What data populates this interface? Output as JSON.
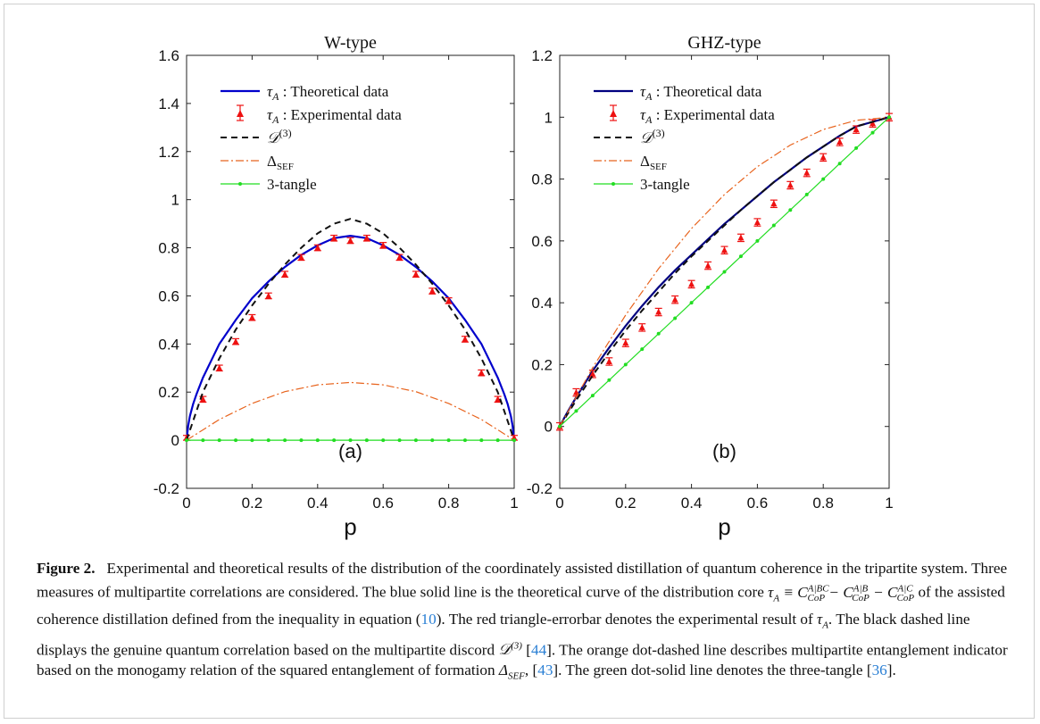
{
  "chart_data": [
    {
      "type": "line",
      "title": "W-type",
      "xlabel": "p",
      "ylabel": "",
      "xlim": [
        0,
        1
      ],
      "ylim": [
        -0.2,
        1.6
      ],
      "xticks": [
        "0",
        "0.2",
        "0.4",
        "0.6",
        "0.8",
        "1"
      ],
      "yticks": [
        "-0.2",
        "0",
        "0.2",
        "0.4",
        "0.6",
        "0.8",
        "1",
        "1.2",
        "1.4",
        "1.6"
      ],
      "panel_label": "(a)",
      "legend_position": "upper-left",
      "legend": [
        "τA : Theoretical data",
        "τA : Experimental data",
        "D(3)",
        "ΔSEF",
        "3-tangle"
      ],
      "series": [
        {
          "name": "τA : Theoretical data",
          "style": "solid",
          "color": "#0000cc",
          "x": [
            0,
            0.005,
            0.01,
            0.02,
            0.03,
            0.05,
            0.075,
            0.1,
            0.15,
            0.2,
            0.25,
            0.3,
            0.35,
            0.4,
            0.45,
            0.5,
            0.55,
            0.6,
            0.65,
            0.7,
            0.75,
            0.8,
            0.85,
            0.9,
            0.925,
            0.95,
            0.97,
            0.98,
            0.99,
            0.995,
            1
          ],
          "y": [
            0,
            0.06,
            0.1,
            0.15,
            0.19,
            0.26,
            0.33,
            0.4,
            0.5,
            0.59,
            0.66,
            0.72,
            0.77,
            0.81,
            0.84,
            0.85,
            0.84,
            0.81,
            0.77,
            0.72,
            0.66,
            0.59,
            0.5,
            0.4,
            0.33,
            0.26,
            0.19,
            0.15,
            0.1,
            0.06,
            0
          ]
        },
        {
          "name": "τA : Experimental data",
          "style": "errorbar",
          "color": "#ee1111",
          "x": [
            0,
            0.05,
            0.1,
            0.15,
            0.2,
            0.25,
            0.3,
            0.35,
            0.4,
            0.45,
            0.5,
            0.55,
            0.6,
            0.65,
            0.7,
            0.75,
            0.8,
            0.85,
            0.9,
            0.95,
            1
          ],
          "y": [
            0.01,
            0.17,
            0.3,
            0.41,
            0.51,
            0.6,
            0.69,
            0.76,
            0.8,
            0.84,
            0.83,
            0.84,
            0.81,
            0.76,
            0.69,
            0.62,
            0.58,
            0.42,
            0.28,
            0.17,
            0.01
          ],
          "err": [
            0.01,
            0.012,
            0.012,
            0.012,
            0.012,
            0.012,
            0.012,
            0.012,
            0.012,
            0.012,
            0.012,
            0.012,
            0.012,
            0.012,
            0.012,
            0.012,
            0.012,
            0.012,
            0.012,
            0.012,
            0.01
          ]
        },
        {
          "name": "D(3)",
          "style": "dashed",
          "color": "#111111",
          "x": [
            0,
            0.05,
            0.1,
            0.15,
            0.2,
            0.25,
            0.3,
            0.35,
            0.4,
            0.45,
            0.5,
            0.55,
            0.6,
            0.65,
            0.7,
            0.75,
            0.8,
            0.85,
            0.9,
            0.95,
            1
          ],
          "y": [
            0,
            0.2,
            0.34,
            0.46,
            0.56,
            0.65,
            0.73,
            0.8,
            0.86,
            0.9,
            0.92,
            0.9,
            0.86,
            0.8,
            0.73,
            0.65,
            0.56,
            0.46,
            0.34,
            0.2,
            0
          ]
        },
        {
          "name": "ΔSEF",
          "style": "dashdot",
          "color": "#e8641e",
          "x": [
            0,
            0.1,
            0.2,
            0.3,
            0.4,
            0.5,
            0.6,
            0.7,
            0.8,
            0.9,
            1
          ],
          "y": [
            0,
            0.086,
            0.153,
            0.202,
            0.23,
            0.24,
            0.23,
            0.202,
            0.153,
            0.086,
            0
          ]
        },
        {
          "name": "3-tangle",
          "style": "dot-solid",
          "color": "#22dd22",
          "x": [
            0,
            0.05,
            0.1,
            0.15,
            0.2,
            0.25,
            0.3,
            0.35,
            0.4,
            0.45,
            0.5,
            0.55,
            0.6,
            0.65,
            0.7,
            0.75,
            0.8,
            0.85,
            0.9,
            0.95,
            1
          ],
          "y": [
            0,
            0,
            0,
            0,
            0,
            0,
            0,
            0,
            0,
            0,
            0,
            0,
            0,
            0,
            0,
            0,
            0,
            0,
            0,
            0,
            0
          ]
        }
      ]
    },
    {
      "type": "line",
      "title": "GHZ-type",
      "xlabel": "p",
      "ylabel": "",
      "xlim": [
        0,
        1
      ],
      "ylim": [
        -0.2,
        1.2
      ],
      "xticks": [
        "0",
        "0.2",
        "0.4",
        "0.6",
        "0.8",
        "1"
      ],
      "yticks": [
        "-0.2",
        "0",
        "0.2",
        "0.4",
        "0.6",
        "0.8",
        "1",
        "1.2"
      ],
      "panel_label": "(b)",
      "legend_position": "upper-left",
      "legend": [
        "τA : Theoretical data",
        "τA : Experimental data",
        "D(3)",
        "ΔSEF",
        "3-tangle"
      ],
      "series": [
        {
          "name": "τA : Theoretical data",
          "style": "solid",
          "color": "#000080",
          "x": [
            0,
            0.02,
            0.05,
            0.1,
            0.15,
            0.2,
            0.25,
            0.3,
            0.35,
            0.4,
            0.45,
            0.5,
            0.55,
            0.6,
            0.65,
            0.7,
            0.75,
            0.8,
            0.85,
            0.9,
            0.95,
            1
          ],
          "y": [
            0,
            0.04,
            0.095,
            0.18,
            0.255,
            0.325,
            0.39,
            0.45,
            0.505,
            0.555,
            0.605,
            0.655,
            0.7,
            0.745,
            0.79,
            0.83,
            0.87,
            0.905,
            0.94,
            0.97,
            0.985,
            1
          ]
        },
        {
          "name": "τA : Experimental data",
          "style": "errorbar",
          "color": "#ee1111",
          "x": [
            0,
            0.05,
            0.1,
            0.15,
            0.2,
            0.25,
            0.3,
            0.35,
            0.4,
            0.45,
            0.5,
            0.55,
            0.6,
            0.65,
            0.7,
            0.75,
            0.8,
            0.85,
            0.9,
            0.95,
            1
          ],
          "y": [
            0,
            0.11,
            0.17,
            0.21,
            0.27,
            0.32,
            0.37,
            0.41,
            0.46,
            0.52,
            0.57,
            0.61,
            0.66,
            0.72,
            0.78,
            0.82,
            0.87,
            0.92,
            0.96,
            0.98,
            1
          ],
          "err": [
            0.012,
            0.012,
            0.012,
            0.012,
            0.012,
            0.012,
            0.012,
            0.012,
            0.012,
            0.012,
            0.012,
            0.012,
            0.012,
            0.012,
            0.012,
            0.012,
            0.012,
            0.012,
            0.012,
            0.012,
            0.012
          ]
        },
        {
          "name": "D(3)",
          "style": "dashed",
          "color": "#111111",
          "x": [
            0,
            0.05,
            0.1,
            0.15,
            0.2,
            0.25,
            0.3,
            0.35,
            0.4,
            0.45,
            0.5,
            0.55,
            0.6,
            0.65,
            0.7,
            0.75,
            0.8,
            0.85,
            0.9,
            0.95,
            1
          ],
          "y": [
            0,
            0.085,
            0.165,
            0.24,
            0.31,
            0.375,
            0.435,
            0.495,
            0.55,
            0.6,
            0.65,
            0.7,
            0.745,
            0.79,
            0.83,
            0.87,
            0.905,
            0.94,
            0.97,
            0.985,
            1
          ]
        },
        {
          "name": "ΔSEF",
          "style": "dashdot",
          "color": "#e8641e",
          "x": [
            0,
            0.1,
            0.2,
            0.3,
            0.4,
            0.5,
            0.6,
            0.7,
            0.8,
            0.9,
            1
          ],
          "y": [
            0,
            0.19,
            0.36,
            0.51,
            0.64,
            0.75,
            0.84,
            0.91,
            0.96,
            0.99,
            1
          ]
        },
        {
          "name": "3-tangle",
          "style": "dot-solid",
          "color": "#22dd22",
          "x": [
            0,
            0.05,
            0.1,
            0.15,
            0.2,
            0.25,
            0.3,
            0.35,
            0.4,
            0.45,
            0.5,
            0.55,
            0.6,
            0.65,
            0.7,
            0.75,
            0.8,
            0.85,
            0.9,
            0.95,
            1
          ],
          "y": [
            0,
            0.05,
            0.1,
            0.15,
            0.2,
            0.25,
            0.3,
            0.35,
            0.4,
            0.45,
            0.5,
            0.55,
            0.6,
            0.65,
            0.7,
            0.75,
            0.8,
            0.85,
            0.9,
            0.95,
            1
          ]
        }
      ]
    }
  ],
  "caption": {
    "label": "Figure 2.",
    "seg1": "Experimental and theoretical results of the distribution of the coordinately assisted distillation of quantum coherence in the tripartite system. Three measures of multipartite correlations are considered. The blue solid line is the theoretical curve of the distribution core ",
    "math_core": "τA ≡ C^{A|BC}_{CoP} − C^{A|B}_{CoP} − C^{A|C}_{CoP}",
    "seg2": " of the assisted coherence distillation defined from the inequality in equation (",
    "ref_eq": "10",
    "seg3": "). The red triangle-errorbar denotes the experimental result of ",
    "math_tau": "τA",
    "seg4": ". The black dashed line displays the genuine quantum correlation based on the multipartite discord ",
    "math_discord": "D(3)",
    "seg5": " [",
    "ref_44": "44",
    "seg6": "]. The orange dot-dashed line describes multipartite entanglement indicator based on the monogamy relation of the squared entanglement of formation ",
    "math_sef": "ΔSEF",
    "seg7": ", [",
    "ref_43": "43",
    "seg8": "]. The green dot-solid line denotes the three-tangle [",
    "ref_36": "36",
    "seg9": "]."
  }
}
